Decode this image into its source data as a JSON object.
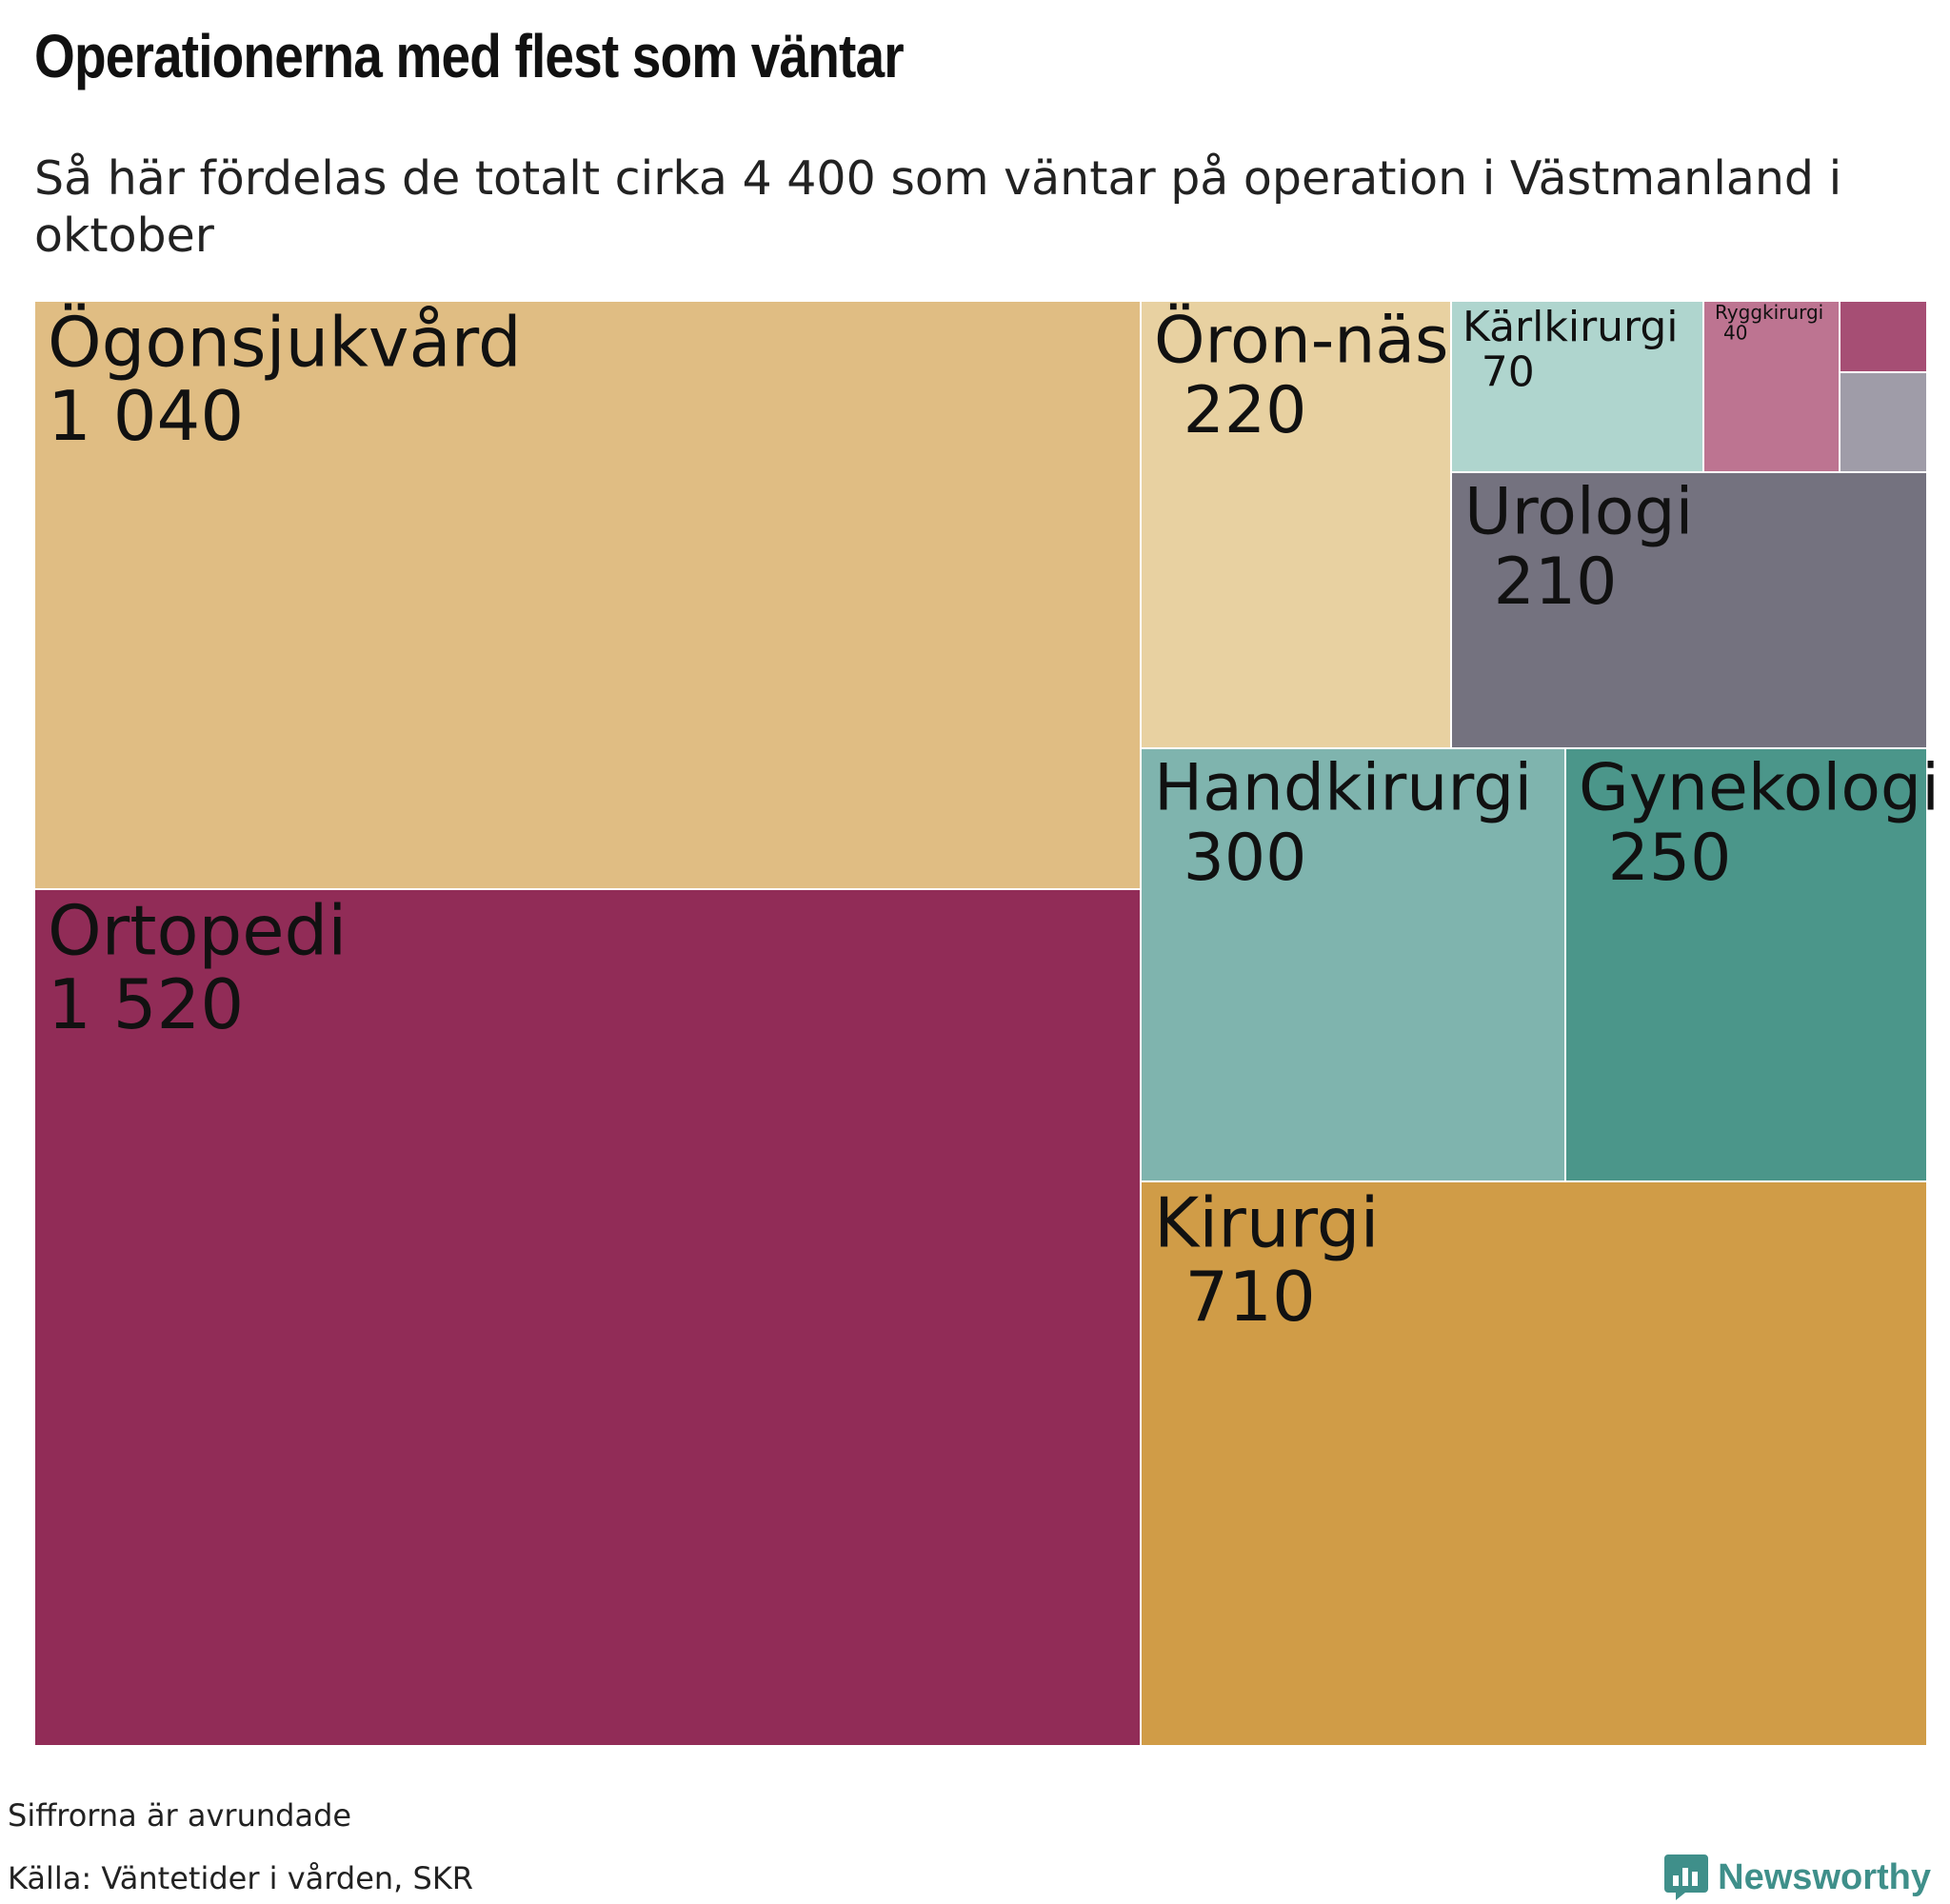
{
  "chart_data": {
    "type": "treemap",
    "title": "Operationerna med flest som väntar",
    "subtitle": "Så här fördelas de totalt cirka 4 400 som väntar på operation i Västmanland i oktober",
    "items": [
      {
        "name": "Ortopedi",
        "label": "1 520",
        "value": 1520,
        "color": "#912c57",
        "show_label": true
      },
      {
        "name": "Ögonsjukvård",
        "label": "1 040",
        "value": 1040,
        "color": "#e0bd83",
        "show_label": true
      },
      {
        "name": "Kirurgi",
        "label": "710",
        "value": 710,
        "color": "#d09c47",
        "show_label": true
      },
      {
        "name": "Handkirurgi",
        "label": "300",
        "value": 300,
        "color": "#7fb4ae",
        "show_label": true
      },
      {
        "name": "Gynekologi",
        "label": "250",
        "value": 250,
        "color": "#4b968a",
        "show_label": true
      },
      {
        "name": "Öron-näsa-hals",
        "label": "220",
        "value": 220,
        "color": "#e8d1a1",
        "show_label": true
      },
      {
        "name": "Urologi",
        "label": "210",
        "value": 210,
        "color": "#74727f",
        "show_label": true
      },
      {
        "name": "Kärlkirurgi",
        "label": "70",
        "value": 70,
        "color": "#afd5ce",
        "show_label": true
      },
      {
        "name": "Ryggkirurgi",
        "label": "40",
        "value": 40,
        "color": "#bd7491",
        "show_label": true
      },
      {
        "name": "",
        "label": "",
        "value": 15,
        "color": "#a64e74",
        "show_label": false
      },
      {
        "name": "",
        "label": "",
        "value": 20,
        "color": "#9f9ca8",
        "show_label": false
      }
    ]
  },
  "footer": {
    "note": "Siffrorna är avrundade",
    "source": "Källa: Väntetider i vården, SKR",
    "brand": "Newsworthy",
    "logo_icon": "bar-chart-speech-bubble-icon",
    "brand_color": "#3f8f8a"
  }
}
